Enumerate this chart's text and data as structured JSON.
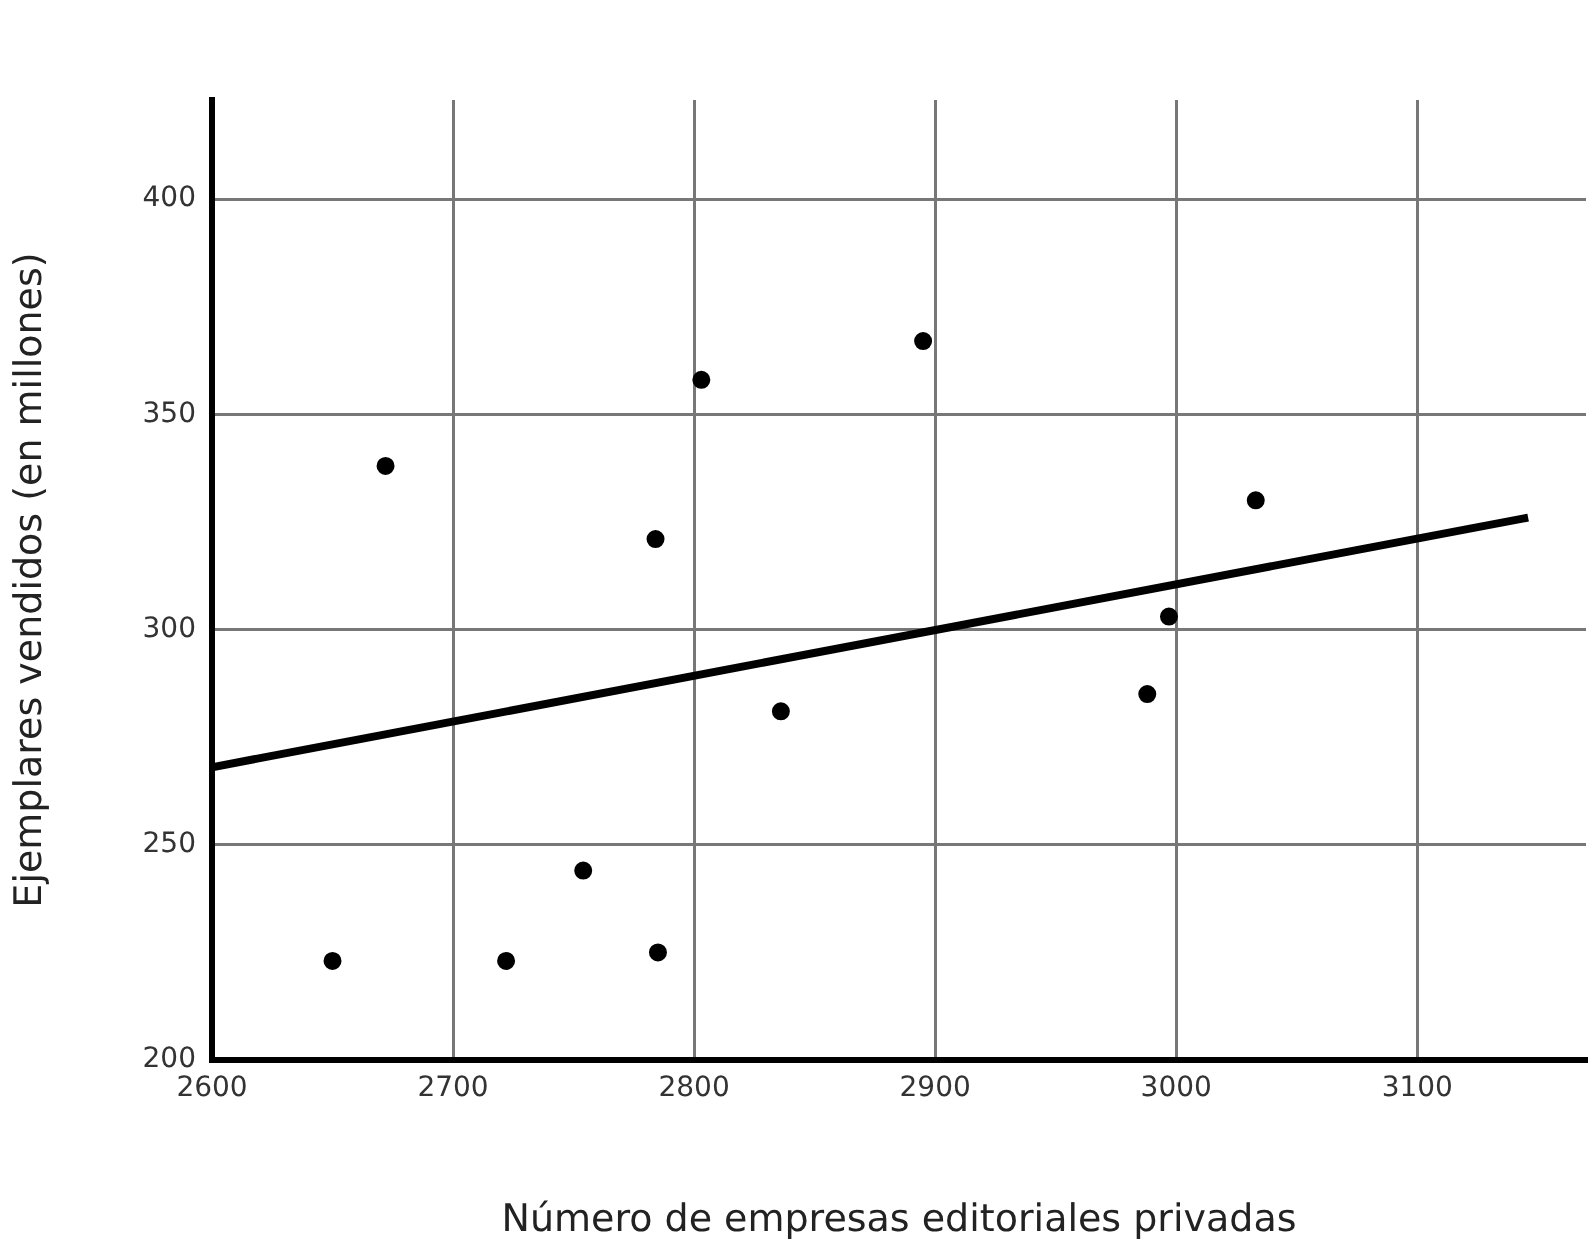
{
  "chart_data": {
    "type": "scatter",
    "xlabel": "Número de empresas editoriales privadas",
    "ylabel": "Ejemplares vendidos (en millones)",
    "xlim": [
      2600,
      3170
    ],
    "xticks": [
      2600,
      2700,
      2800,
      2900,
      3000,
      3100
    ],
    "ylim": [
      200,
      423
    ],
    "yticks": [
      200,
      250,
      300,
      350,
      400
    ],
    "grid": true,
    "marker": "circle",
    "series": [
      {
        "type": "scatter",
        "color": "#000000",
        "x": [
          2650,
          2722,
          2754,
          2785,
          2836,
          2672,
          2784,
          2803,
          2895,
          3033,
          2997,
          2988
        ],
        "values": [
          223,
          223,
          244,
          225,
          281,
          338,
          321,
          358,
          367,
          330,
          303,
          285
        ]
      },
      {
        "type": "line",
        "color": "#000000",
        "marker": "none",
        "x": [
          2600,
          3146
        ],
        "values": [
          268,
          326
        ]
      }
    ]
  }
}
